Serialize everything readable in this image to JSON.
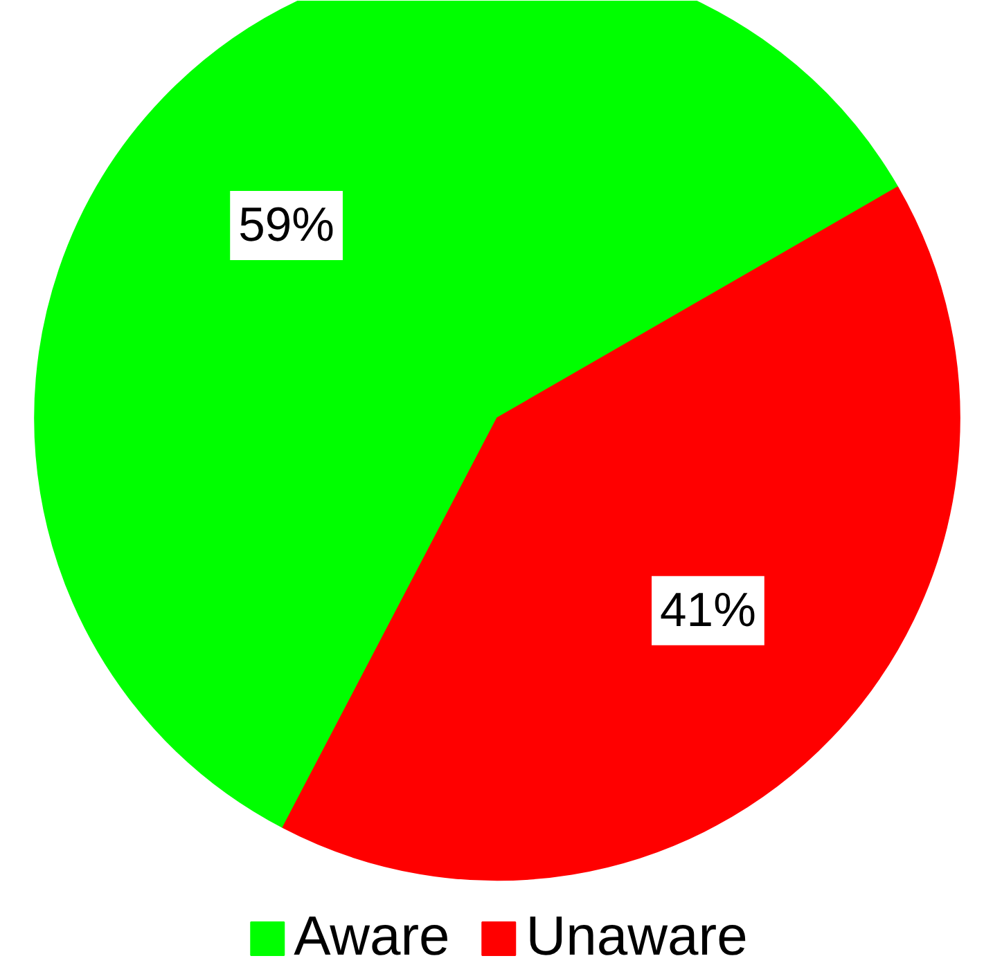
{
  "chart_data": {
    "type": "pie",
    "categories": [
      "Aware",
      "Unaware"
    ],
    "values": [
      59,
      41
    ],
    "colors": [
      "#00ff00",
      "#ff0000"
    ],
    "value_labels": [
      "59%",
      "41%"
    ],
    "legend": "bottom"
  }
}
